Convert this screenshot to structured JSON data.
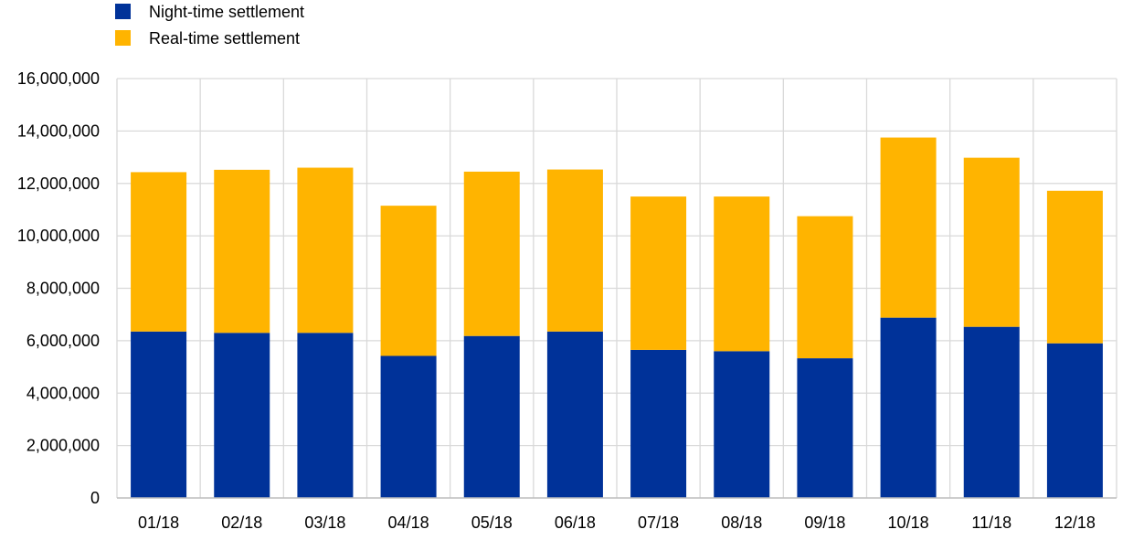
{
  "chart_data": {
    "type": "bar",
    "stacked": true,
    "title": "",
    "xlabel": "",
    "ylabel": "",
    "categories": [
      "01/18",
      "02/18",
      "03/18",
      "04/18",
      "05/18",
      "06/18",
      "07/18",
      "08/18",
      "09/18",
      "10/18",
      "11/18",
      "12/18"
    ],
    "series": [
      {
        "name": "Night-time settlement",
        "color": "#003299",
        "values": [
          6350000,
          6300000,
          6300000,
          5420000,
          6180000,
          6350000,
          5650000,
          5600000,
          5330000,
          6880000,
          6530000,
          5900000
        ]
      },
      {
        "name": "Real-time settlement",
        "color": "#FFB400",
        "values": [
          6080000,
          6220000,
          6300000,
          5730000,
          6270000,
          6180000,
          5850000,
          5900000,
          5420000,
          6870000,
          6450000,
          5820000
        ]
      }
    ],
    "ylim": [
      0,
      16000000
    ],
    "yticks": [
      0,
      2000000,
      4000000,
      6000000,
      8000000,
      10000000,
      12000000,
      14000000,
      16000000
    ],
    "ytick_labels": [
      "0",
      "2,000,000",
      "4,000,000",
      "6,000,000",
      "8,000,000",
      "10,000,000",
      "12,000,000",
      "14,000,000",
      "16,000,000"
    ],
    "grid": true,
    "legend_position": "top-left"
  }
}
